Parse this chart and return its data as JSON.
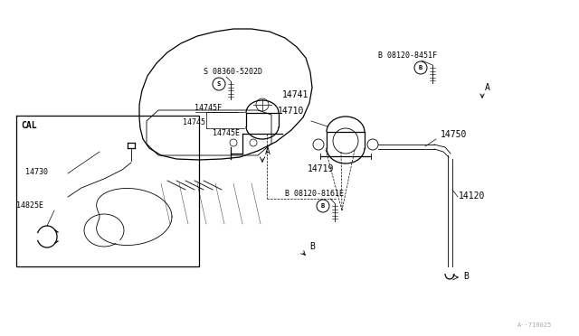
{
  "bg_color": "#ffffff",
  "line_color": "#000000",
  "watermark": "A··710025",
  "labels": {
    "s_bolt": "S 08360-5202D",
    "b_bolt1": "B 08120-8451F",
    "b_bolt2": "B 08120-8161E",
    "p14741": "14741",
    "p14745f": "14745F",
    "p14745": "14745",
    "p14745e": "14745E",
    "p14710": "14710",
    "p14750": "14750",
    "p14719": "14719",
    "p14730": "14730",
    "p14825e": "14825E",
    "p14120": "14120",
    "cal": "CAL",
    "a1": "A",
    "a2": "A",
    "b1": "B",
    "b2": "B"
  },
  "font_size_label": 7,
  "font_size_small": 6
}
